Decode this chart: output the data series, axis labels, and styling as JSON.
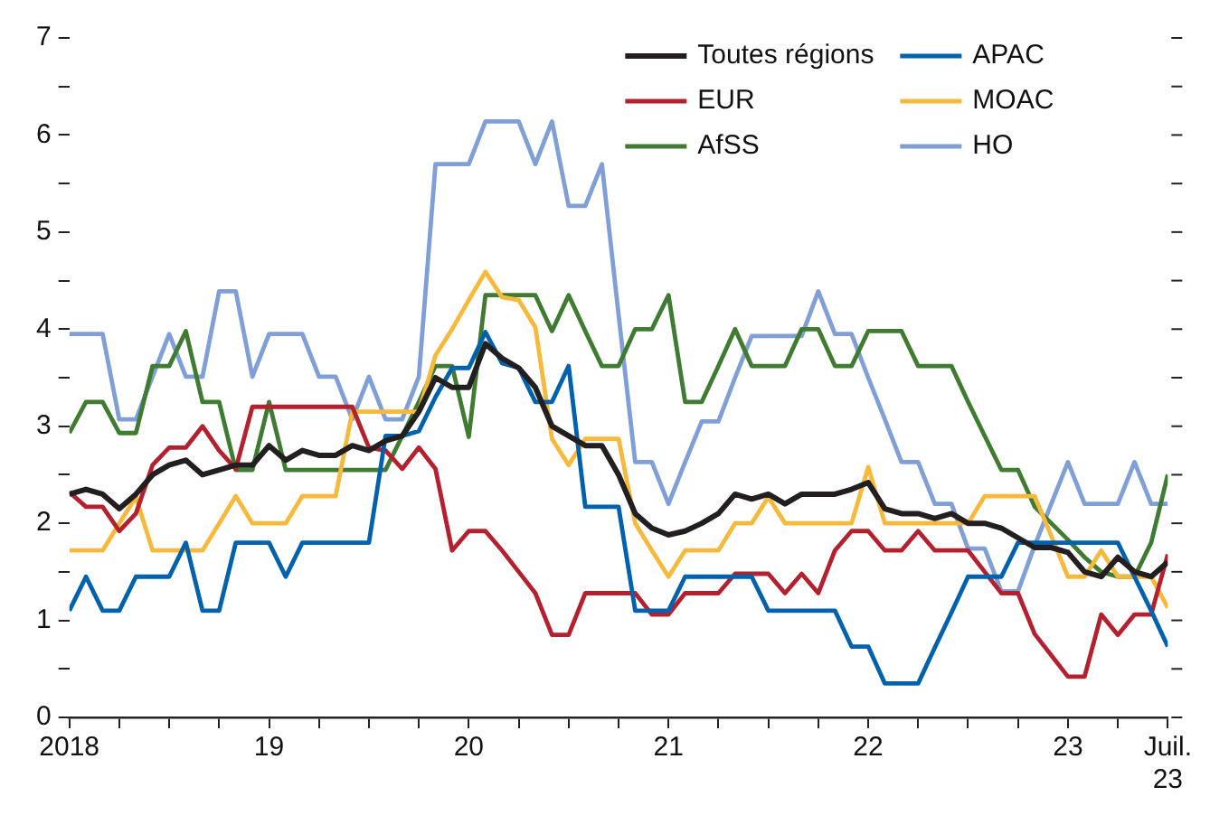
{
  "chart_data": {
    "type": "line",
    "legend": "top right",
    "marker": "none",
    "line_style": "solid",
    "grid": false,
    "x": [
      "2018-01",
      "2018-02",
      "2018-03",
      "2018-04",
      "2018-05",
      "2018-06",
      "2018-07",
      "2018-08",
      "2018-09",
      "2018-10",
      "2018-11",
      "2018-12",
      "2019-01",
      "2019-02",
      "2019-03",
      "2019-04",
      "2019-05",
      "2019-06",
      "2019-07",
      "2019-08",
      "2019-09",
      "2019-10",
      "2019-11",
      "2019-12",
      "2020-01",
      "2020-02",
      "2020-03",
      "2020-04",
      "2020-05",
      "2020-06",
      "2020-07",
      "2020-08",
      "2020-09",
      "2020-10",
      "2020-11",
      "2020-12",
      "2021-01",
      "2021-02",
      "2021-03",
      "2021-04",
      "2021-05",
      "2021-06",
      "2021-07",
      "2021-08",
      "2021-09",
      "2021-10",
      "2021-11",
      "2021-12",
      "2022-01",
      "2022-02",
      "2022-03",
      "2022-04",
      "2022-05",
      "2022-06",
      "2022-07",
      "2022-08",
      "2022-09",
      "2022-10",
      "2022-11",
      "2022-12",
      "2023-01",
      "2023-02",
      "2023-03",
      "2023-04",
      "2023-05",
      "2023-06",
      "2023-07"
    ],
    "xlim": [
      "2018-01",
      "2023-07"
    ],
    "xticks": [
      {
        "value": "2018-01",
        "label": "2018"
      },
      {
        "value": "2018-04",
        "label": null
      },
      {
        "value": "2018-07",
        "label": null
      },
      {
        "value": "2018-10",
        "label": null
      },
      {
        "value": "2019-01",
        "label": "19"
      },
      {
        "value": "2019-04",
        "label": null
      },
      {
        "value": "2019-07",
        "label": null
      },
      {
        "value": "2019-10",
        "label": null
      },
      {
        "value": "2020-01",
        "label": "20"
      },
      {
        "value": "2020-04",
        "label": null
      },
      {
        "value": "2020-07",
        "label": null
      },
      {
        "value": "2020-10",
        "label": null
      },
      {
        "value": "2021-01",
        "label": "21"
      },
      {
        "value": "2021-04",
        "label": null
      },
      {
        "value": "2021-07",
        "label": null
      },
      {
        "value": "2021-10",
        "label": null
      },
      {
        "value": "2022-01",
        "label": "22"
      },
      {
        "value": "2022-04",
        "label": null
      },
      {
        "value": "2022-07",
        "label": null
      },
      {
        "value": "2022-10",
        "label": null
      },
      {
        "value": "2023-01",
        "label": "23"
      },
      {
        "value": "2023-04",
        "label": null
      },
      {
        "value": "2023-07",
        "label": "Juil.\n23"
      }
    ],
    "ylim": [
      0,
      7
    ],
    "yticks": [
      0,
      {
        "value": 0.5,
        "label": null
      },
      1,
      {
        "value": 1.5,
        "label": null
      },
      2,
      {
        "value": 2.5,
        "label": null
      },
      3,
      {
        "value": 3.5,
        "label": null
      },
      4,
      {
        "value": 4.5,
        "label": null
      },
      5,
      {
        "value": 5.5,
        "label": null
      },
      6,
      {
        "value": 6.5,
        "label": null
      },
      7
    ],
    "series": [
      {
        "name": "Toutes régions",
        "color": "#231f20",
        "values": [
          2.3,
          2.35,
          2.3,
          2.15,
          2.3,
          2.5,
          2.6,
          2.65,
          2.5,
          2.55,
          2.6,
          2.6,
          2.8,
          2.65,
          2.75,
          2.7,
          2.7,
          2.8,
          2.75,
          2.85,
          2.9,
          3.15,
          3.5,
          3.4,
          3.4,
          3.85,
          3.7,
          3.6,
          3.4,
          3.0,
          2.9,
          2.8,
          2.8,
          2.5,
          2.1,
          1.95,
          1.88,
          1.92,
          2.0,
          2.1,
          2.3,
          2.25,
          2.3,
          2.2,
          2.3,
          2.3,
          2.3,
          2.35,
          2.42,
          2.15,
          2.1,
          2.1,
          2.05,
          2.1,
          2.0,
          2.0,
          1.95,
          1.85,
          1.75,
          1.75,
          1.7,
          1.5,
          1.45,
          1.65,
          1.5,
          1.45,
          1.6
        ]
      },
      {
        "name": "APAC",
        "color": "#0062ad",
        "values": [
          1.1,
          1.45,
          1.1,
          1.1,
          1.45,
          1.45,
          1.45,
          1.8,
          1.1,
          1.1,
          1.8,
          1.8,
          1.8,
          1.45,
          1.8,
          1.8,
          1.8,
          1.8,
          1.8,
          2.9,
          2.9,
          2.95,
          3.3,
          3.6,
          3.6,
          3.97,
          3.65,
          3.6,
          3.25,
          3.25,
          3.62,
          2.17,
          2.17,
          2.17,
          1.1,
          1.1,
          1.1,
          1.45,
          1.45,
          1.45,
          1.45,
          1.45,
          1.1,
          1.1,
          1.1,
          1.1,
          1.1,
          0.73,
          0.73,
          0.35,
          0.35,
          0.35,
          0.72,
          1.08,
          1.45,
          1.45,
          1.45,
          1.8,
          1.8,
          1.8,
          1.8,
          1.8,
          1.8,
          1.8,
          1.45,
          1.1,
          0.73
        ]
      },
      {
        "name": "EUR",
        "color": "#b5202e",
        "values": [
          2.32,
          2.17,
          2.17,
          1.92,
          2.1,
          2.6,
          2.78,
          2.78,
          3.0,
          2.75,
          2.56,
          3.2,
          3.2,
          3.2,
          3.2,
          3.2,
          3.2,
          3.2,
          2.78,
          2.75,
          2.56,
          2.78,
          2.56,
          1.72,
          1.92,
          1.92,
          1.72,
          1.5,
          1.28,
          0.85,
          0.85,
          1.28,
          1.28,
          1.28,
          1.28,
          1.06,
          1.06,
          1.28,
          1.28,
          1.28,
          1.48,
          1.48,
          1.48,
          1.28,
          1.48,
          1.28,
          1.72,
          1.92,
          1.92,
          1.72,
          1.72,
          1.92,
          1.72,
          1.72,
          1.72,
          1.5,
          1.28,
          1.28,
          0.86,
          0.64,
          0.42,
          0.42,
          1.06,
          0.85,
          1.06,
          1.06,
          1.68
        ]
      },
      {
        "name": "MOAC",
        "color": "#f6b93b",
        "values": [
          1.72,
          1.72,
          1.72,
          2.0,
          2.27,
          1.72,
          1.72,
          1.72,
          1.72,
          2.0,
          2.28,
          2.0,
          2.0,
          2.0,
          2.28,
          2.28,
          2.28,
          3.15,
          3.15,
          3.15,
          3.15,
          3.15,
          3.73,
          4.0,
          4.3,
          4.59,
          4.33,
          4.3,
          4.02,
          2.87,
          2.6,
          2.87,
          2.87,
          2.87,
          2.0,
          1.72,
          1.45,
          1.72,
          1.72,
          1.72,
          2.0,
          2.0,
          2.27,
          2.0,
          2.0,
          2.0,
          2.0,
          2.0,
          2.58,
          2.0,
          2.0,
          2.0,
          2.0,
          2.0,
          2.0,
          2.28,
          2.28,
          2.28,
          2.28,
          1.87,
          1.45,
          1.45,
          1.72,
          1.45,
          1.45,
          1.45,
          1.13
        ]
      },
      {
        "name": "AfSS",
        "color": "#3f7b31",
        "values": [
          2.93,
          3.25,
          3.25,
          2.93,
          2.93,
          3.62,
          3.62,
          3.98,
          3.25,
          3.25,
          2.55,
          2.55,
          3.25,
          2.55,
          2.55,
          2.55,
          2.55,
          2.55,
          2.55,
          2.55,
          2.9,
          3.25,
          3.62,
          3.62,
          2.89,
          4.35,
          4.35,
          4.35,
          4.35,
          3.98,
          4.35,
          3.98,
          3.62,
          3.62,
          4.0,
          4.0,
          4.35,
          3.25,
          3.25,
          3.62,
          4.0,
          3.62,
          3.62,
          3.62,
          4.0,
          4.0,
          3.62,
          3.62,
          3.98,
          3.98,
          3.98,
          3.62,
          3.62,
          3.62,
          3.25,
          2.9,
          2.55,
          2.55,
          2.17,
          2.0,
          1.83,
          1.65,
          1.5,
          1.45,
          1.45,
          1.8,
          2.5
        ]
      },
      {
        "name": "HO",
        "color": "#7f9fd6",
        "values": [
          3.95,
          3.95,
          3.95,
          3.07,
          3.07,
          3.51,
          3.95,
          3.51,
          3.51,
          4.39,
          4.39,
          3.51,
          3.95,
          3.95,
          3.95,
          3.51,
          3.51,
          3.07,
          3.51,
          3.07,
          3.07,
          3.51,
          5.7,
          5.7,
          5.7,
          6.14,
          6.14,
          6.14,
          5.7,
          6.14,
          5.27,
          5.27,
          5.7,
          4.15,
          2.63,
          2.63,
          2.2,
          2.63,
          3.05,
          3.05,
          3.5,
          3.93,
          3.93,
          3.93,
          3.93,
          4.39,
          3.95,
          3.95,
          3.5,
          3.07,
          2.63,
          2.63,
          2.2,
          2.2,
          1.74,
          1.74,
          1.3,
          1.3,
          1.77,
          2.2,
          2.63,
          2.2,
          2.2,
          2.2,
          2.63,
          2.2,
          2.2
        ]
      }
    ]
  }
}
